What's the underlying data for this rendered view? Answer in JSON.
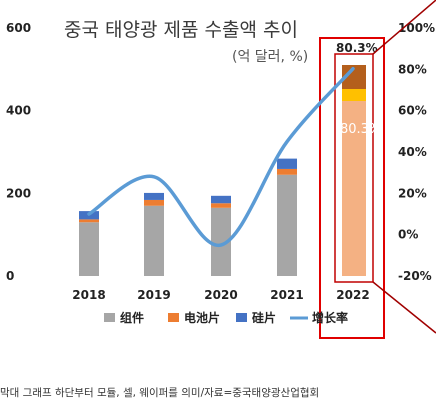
{
  "chart_data": {
    "type": "bar",
    "title": "중국 태양광 제품 수출액 추이",
    "subtitle": "(억 달러, %)",
    "categories": [
      "2018",
      "2019",
      "2020",
      "2021",
      "2022"
    ],
    "series": [
      {
        "name": "组件",
        "values": [
          130,
          170,
          165,
          245,
          0
        ],
        "color": "#a6a6a6"
      },
      {
        "name": "电池片",
        "values": [
          7,
          14,
          11,
          14,
          0
        ],
        "color": "#ed7d31"
      },
      {
        "name": "硅片",
        "values": [
          20,
          17,
          18,
          25,
          0
        ],
        "color": "#4472c4"
      }
    ],
    "growth": {
      "name": "增长率",
      "values": [
        10,
        28,
        -5,
        45,
        80.3
      ],
      "color": "#5b9bd5"
    },
    "highlight_label": "80.3%",
    "highlight_inner_label": "80.3%",
    "ylim_left": [
      0,
      600
    ],
    "yticks_left": [
      "0",
      "200",
      "400",
      "600"
    ],
    "yticks_right": [
      "100%",
      "80%",
      "60%",
      "40%",
      "20%",
      "0%",
      "-20%"
    ],
    "legend_position": "bottom"
  },
  "caption": "막대 그래프 하단부터 모듈, 셀, 웨이퍼를 의미/자료=중국태양광산업협회"
}
